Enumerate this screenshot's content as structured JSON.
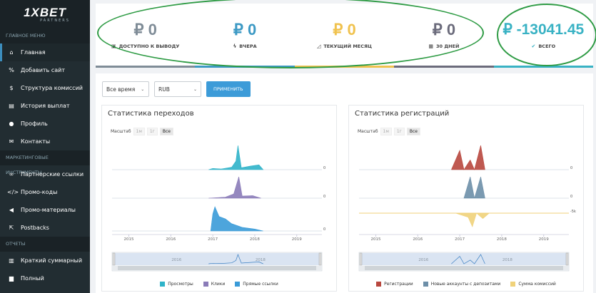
{
  "brand": {
    "logo_main": "1XBET",
    "logo_sub": "PARTNERS"
  },
  "sidebar": {
    "section_main": "ГЛАВНОЕ МЕНЮ",
    "section_marketing": "МАРКЕТИНГОВЫЕ ИНСТРУМЕНТЫ",
    "section_reports": "ОТЧЕТЫ",
    "main_items": [
      {
        "label": "Главная",
        "icon": "home-icon",
        "glyph": "⌂"
      },
      {
        "label": "Добавить сайт",
        "icon": "link-icon",
        "glyph": "%"
      },
      {
        "label": "Структура комиссий",
        "icon": "dollar-icon",
        "glyph": "$"
      },
      {
        "label": "История выплат",
        "icon": "money-icon",
        "glyph": "▤"
      },
      {
        "label": "Профиль",
        "icon": "user-icon",
        "glyph": "●"
      },
      {
        "label": "Контакты",
        "icon": "envelope-icon",
        "glyph": "✉"
      }
    ],
    "marketing_items": [
      {
        "label": "Партнерские ссылки",
        "icon": "chain-icon",
        "glyph": "∞"
      },
      {
        "label": "Промо-коды",
        "icon": "code-icon",
        "glyph": "</>"
      },
      {
        "label": "Промо-материалы",
        "icon": "bullhorn-icon",
        "glyph": "◀"
      },
      {
        "label": "Postbacks",
        "icon": "external-link-icon",
        "glyph": "⇱"
      }
    ],
    "report_items": [
      {
        "label": "Краткий суммарный",
        "icon": "bar-chart-icon",
        "glyph": "▥"
      },
      {
        "label": "Полный",
        "icon": "briefcase-icon",
        "glyph": "▆"
      }
    ]
  },
  "cards": [
    {
      "value": "₽ 0",
      "label": "ДОСТУПНО К ВЫВОДУ",
      "icon": "wallet-icon",
      "glyph": "▣"
    },
    {
      "value": "₽ 0",
      "label": "ВЧЕРА",
      "icon": "bolt-icon",
      "glyph": "ϟ"
    },
    {
      "value": "₽ 0",
      "label": "ТЕКУЩИЙ МЕСЯЦ",
      "icon": "area-chart-icon",
      "glyph": "◿"
    },
    {
      "value": "₽ 0",
      "label": "30 ДНЕЙ",
      "icon": "calendar-icon",
      "glyph": "▦"
    },
    {
      "value": "₽ -13041.45",
      "label": "ВСЕГО",
      "icon": "check-icon",
      "glyph": "✔"
    }
  ],
  "filters": {
    "period": "Все время",
    "currency": "RUB",
    "apply": "ПРИМЕНИТЬ"
  },
  "zoom": {
    "label": "Масштаб",
    "options": [
      "1м",
      "1г",
      "Все"
    ]
  },
  "colors": {
    "views": "#2fb3c9",
    "clicks": "#8a7bb8",
    "links": "#3a9bd8",
    "reg": "#b8473e",
    "dep": "#6d8fa8",
    "comm": "#f0d27a"
  },
  "chart_data": [
    {
      "type": "area",
      "title": "Статистика переходов",
      "x_ticks": [
        "2015",
        "2016",
        "2017",
        "2018",
        "2019"
      ],
      "navigator_ticks": [
        "2016",
        "2018"
      ],
      "series": [
        {
          "name": "Просмотры",
          "end_value": "0",
          "points": [
            [
              2016.9,
              0
            ],
            [
              2017.0,
              0.05
            ],
            [
              2017.2,
              0.03
            ],
            [
              2017.45,
              0.1
            ],
            [
              2017.55,
              0.35
            ],
            [
              2017.6,
              1
            ],
            [
              2017.68,
              0.08
            ],
            [
              2017.9,
              0.15
            ],
            [
              2018.1,
              0.2
            ],
            [
              2018.2,
              0
            ]
          ]
        },
        {
          "name": "Клики",
          "end_value": "0",
          "points": [
            [
              2016.9,
              0
            ],
            [
              2017.3,
              0.05
            ],
            [
              2017.5,
              0.2
            ],
            [
              2017.62,
              1
            ],
            [
              2017.7,
              0.1
            ],
            [
              2017.95,
              0.12
            ],
            [
              2018.15,
              0
            ]
          ]
        },
        {
          "name": "Прямые ссылки",
          "end_value": "0",
          "points": [
            [
              2016.95,
              0
            ],
            [
              2017.0,
              0.7
            ],
            [
              2017.05,
              1
            ],
            [
              2017.15,
              0.6
            ],
            [
              2017.3,
              0.5
            ],
            [
              2017.45,
              0.3
            ],
            [
              2017.7,
              0.15
            ],
            [
              2018.0,
              0.08
            ],
            [
              2018.2,
              0
            ]
          ]
        }
      ]
    },
    {
      "type": "area",
      "title": "Статистика регистраций",
      "x_ticks": [
        "2015",
        "2016",
        "2017",
        "2018",
        "2019"
      ],
      "navigator_ticks": [
        "2016",
        "2018"
      ],
      "series": [
        {
          "name": "Регистрации",
          "end_value": "0",
          "points": [
            [
              2016.8,
              0
            ],
            [
              2017.0,
              0.8
            ],
            [
              2017.1,
              0
            ],
            [
              2017.25,
              0.4
            ],
            [
              2017.35,
              0
            ],
            [
              2017.5,
              1
            ],
            [
              2017.6,
              0
            ]
          ]
        },
        {
          "name": "Новые аккаунты с депозитами",
          "end_value": "0",
          "points": [
            [
              2017.1,
              0
            ],
            [
              2017.25,
              1
            ],
            [
              2017.35,
              0
            ],
            [
              2017.5,
              1
            ],
            [
              2017.6,
              0
            ]
          ]
        },
        {
          "name": "Сумма комиссий",
          "end_value": "-5k",
          "points": [
            [
              2016.9,
              0
            ],
            [
              2017.2,
              -0.3
            ],
            [
              2017.3,
              -1
            ],
            [
              2017.4,
              0
            ],
            [
              2017.55,
              -0.4
            ],
            [
              2017.7,
              0
            ]
          ]
        }
      ]
    }
  ]
}
